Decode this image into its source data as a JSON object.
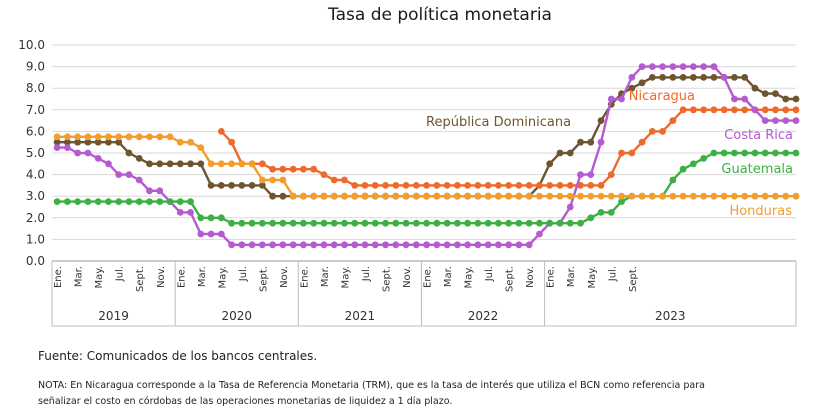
{
  "chart_data": {
    "type": "line",
    "title": "Tasa de política monetaria",
    "xlabel": "",
    "ylabel": "",
    "ylim": [
      0,
      10
    ],
    "yticks": [
      "0.0",
      "1.0",
      "2.0",
      "3.0",
      "4.0",
      "5.0",
      "6.0",
      "7.0",
      "8.0",
      "9.0",
      "10.0"
    ],
    "grid": true,
    "legend": "inline labels",
    "x_tick_labels": [
      "Ene.",
      "Mar.",
      "May.",
      "Jul.",
      "Sept.",
      "Nov.",
      "Ene.",
      "Mar.",
      "May.",
      "Jul.",
      "Sept.",
      "Nov.",
      "Ene.",
      "Mar.",
      "May.",
      "Jul.",
      "Sept.",
      "Nov.",
      "Ene.",
      "Mar.",
      "May.",
      "Jul.",
      "Sept.",
      "Nov.",
      "Ene.",
      "Mar.",
      "May.",
      "Jul.",
      "Sept."
    ],
    "years": [
      "2019",
      "2020",
      "2021",
      "2022",
      "2023"
    ],
    "series": [
      {
        "name": "República Dominicana",
        "color": "#6e5530",
        "values": [
          5.5,
          5.5,
          5.5,
          5.5,
          5.5,
          5.5,
          5.5,
          5.0,
          4.75,
          4.5,
          4.5,
          4.5,
          4.5,
          4.5,
          4.5,
          3.5,
          3.5,
          3.5,
          3.5,
          3.5,
          3.5,
          3.0,
          3.0,
          3.0,
          3.0,
          3.0,
          3.0,
          3.0,
          3.0,
          3.0,
          3.0,
          3.0,
          3.0,
          3.0,
          3.0,
          3.0,
          3.0,
          3.0,
          3.0,
          3.0,
          3.0,
          3.0,
          3.0,
          3.0,
          3.0,
          3.0,
          3.0,
          3.5,
          4.5,
          5.0,
          5.0,
          5.5,
          5.5,
          6.5,
          7.25,
          7.75,
          8.0,
          8.25,
          8.5,
          8.5,
          8.5,
          8.5,
          8.5,
          8.5,
          8.5,
          8.5,
          8.5,
          8.5,
          8.0,
          7.75,
          7.75,
          7.5,
          7.5
        ]
      },
      {
        "name": "Nicaragua",
        "color": "#ee6a2c",
        "values": [
          null,
          null,
          null,
          null,
          null,
          null,
          null,
          null,
          null,
          null,
          null,
          null,
          null,
          null,
          null,
          null,
          6.0,
          5.5,
          4.5,
          4.5,
          4.5,
          4.25,
          4.25,
          4.25,
          4.25,
          4.25,
          4.0,
          3.75,
          3.75,
          3.5,
          3.5,
          3.5,
          3.5,
          3.5,
          3.5,
          3.5,
          3.5,
          3.5,
          3.5,
          3.5,
          3.5,
          3.5,
          3.5,
          3.5,
          3.5,
          3.5,
          3.5,
          3.5,
          3.5,
          3.5,
          3.5,
          3.5,
          3.5,
          3.5,
          4.0,
          5.0,
          5.0,
          5.5,
          6.0,
          6.0,
          6.5,
          7.0,
          7.0,
          7.0,
          7.0,
          7.0,
          7.0,
          7.0,
          7.0,
          7.0,
          7.0,
          7.0,
          7.0
        ]
      },
      {
        "name": "Costa Rica",
        "color": "#b55ad1",
        "values": [
          5.25,
          5.25,
          5.0,
          5.0,
          4.75,
          4.5,
          4.0,
          4.0,
          3.75,
          3.25,
          3.25,
          2.75,
          2.25,
          2.25,
          1.25,
          1.25,
          1.25,
          0.75,
          0.75,
          0.75,
          0.75,
          0.75,
          0.75,
          0.75,
          0.75,
          0.75,
          0.75,
          0.75,
          0.75,
          0.75,
          0.75,
          0.75,
          0.75,
          0.75,
          0.75,
          0.75,
          0.75,
          0.75,
          0.75,
          0.75,
          0.75,
          0.75,
          0.75,
          0.75,
          0.75,
          0.75,
          0.75,
          1.25,
          1.75,
          1.75,
          2.5,
          4.0,
          4.0,
          5.5,
          7.5,
          7.5,
          8.5,
          9.0,
          9.0,
          9.0,
          9.0,
          9.0,
          9.0,
          9.0,
          9.0,
          8.5,
          7.5,
          7.5,
          7.0,
          6.5,
          6.5,
          6.5,
          6.5
        ]
      },
      {
        "name": "Guatemala",
        "color": "#3db045",
        "values": [
          2.75,
          2.75,
          2.75,
          2.75,
          2.75,
          2.75,
          2.75,
          2.75,
          2.75,
          2.75,
          2.75,
          2.75,
          2.75,
          2.75,
          2.0,
          2.0,
          2.0,
          1.75,
          1.75,
          1.75,
          1.75,
          1.75,
          1.75,
          1.75,
          1.75,
          1.75,
          1.75,
          1.75,
          1.75,
          1.75,
          1.75,
          1.75,
          1.75,
          1.75,
          1.75,
          1.75,
          1.75,
          1.75,
          1.75,
          1.75,
          1.75,
          1.75,
          1.75,
          1.75,
          1.75,
          1.75,
          1.75,
          1.75,
          1.75,
          1.75,
          1.75,
          1.75,
          2.0,
          2.25,
          2.25,
          2.75,
          3.0,
          3.0,
          3.0,
          3.0,
          3.75,
          4.25,
          4.5,
          4.75,
          5.0,
          5.0,
          5.0,
          5.0,
          5.0,
          5.0,
          5.0,
          5.0,
          5.0
        ]
      },
      {
        "name": "Honduras",
        "color": "#f39d2c",
        "values": [
          5.75,
          5.75,
          5.75,
          5.75,
          5.75,
          5.75,
          5.75,
          5.75,
          5.75,
          5.75,
          5.75,
          5.75,
          5.5,
          5.5,
          5.25,
          4.5,
          4.5,
          4.5,
          4.5,
          4.5,
          3.75,
          3.75,
          3.75,
          3.0,
          3.0,
          3.0,
          3.0,
          3.0,
          3.0,
          3.0,
          3.0,
          3.0,
          3.0,
          3.0,
          3.0,
          3.0,
          3.0,
          3.0,
          3.0,
          3.0,
          3.0,
          3.0,
          3.0,
          3.0,
          3.0,
          3.0,
          3.0,
          3.0,
          3.0,
          3.0,
          3.0,
          3.0,
          3.0,
          3.0,
          3.0,
          3.0,
          3.0,
          3.0,
          3.0,
          3.0,
          3.0,
          3.0,
          3.0,
          3.0,
          3.0,
          3.0,
          3.0,
          3.0,
          3.0,
          3.0,
          3.0,
          3.0,
          3.0
        ]
      }
    ]
  },
  "footer": {
    "source": "Fuente: Comunicados de los bancos centrales.",
    "note": "NOTA: En Nicaragua corresponde a la Tasa de Referencia Monetaria (TRM), que es la tasa de interés que utiliza el BCN como referencia para señalizar el costo en córdobas de las operaciones monetarias de liquidez a 1 día plazo."
  }
}
